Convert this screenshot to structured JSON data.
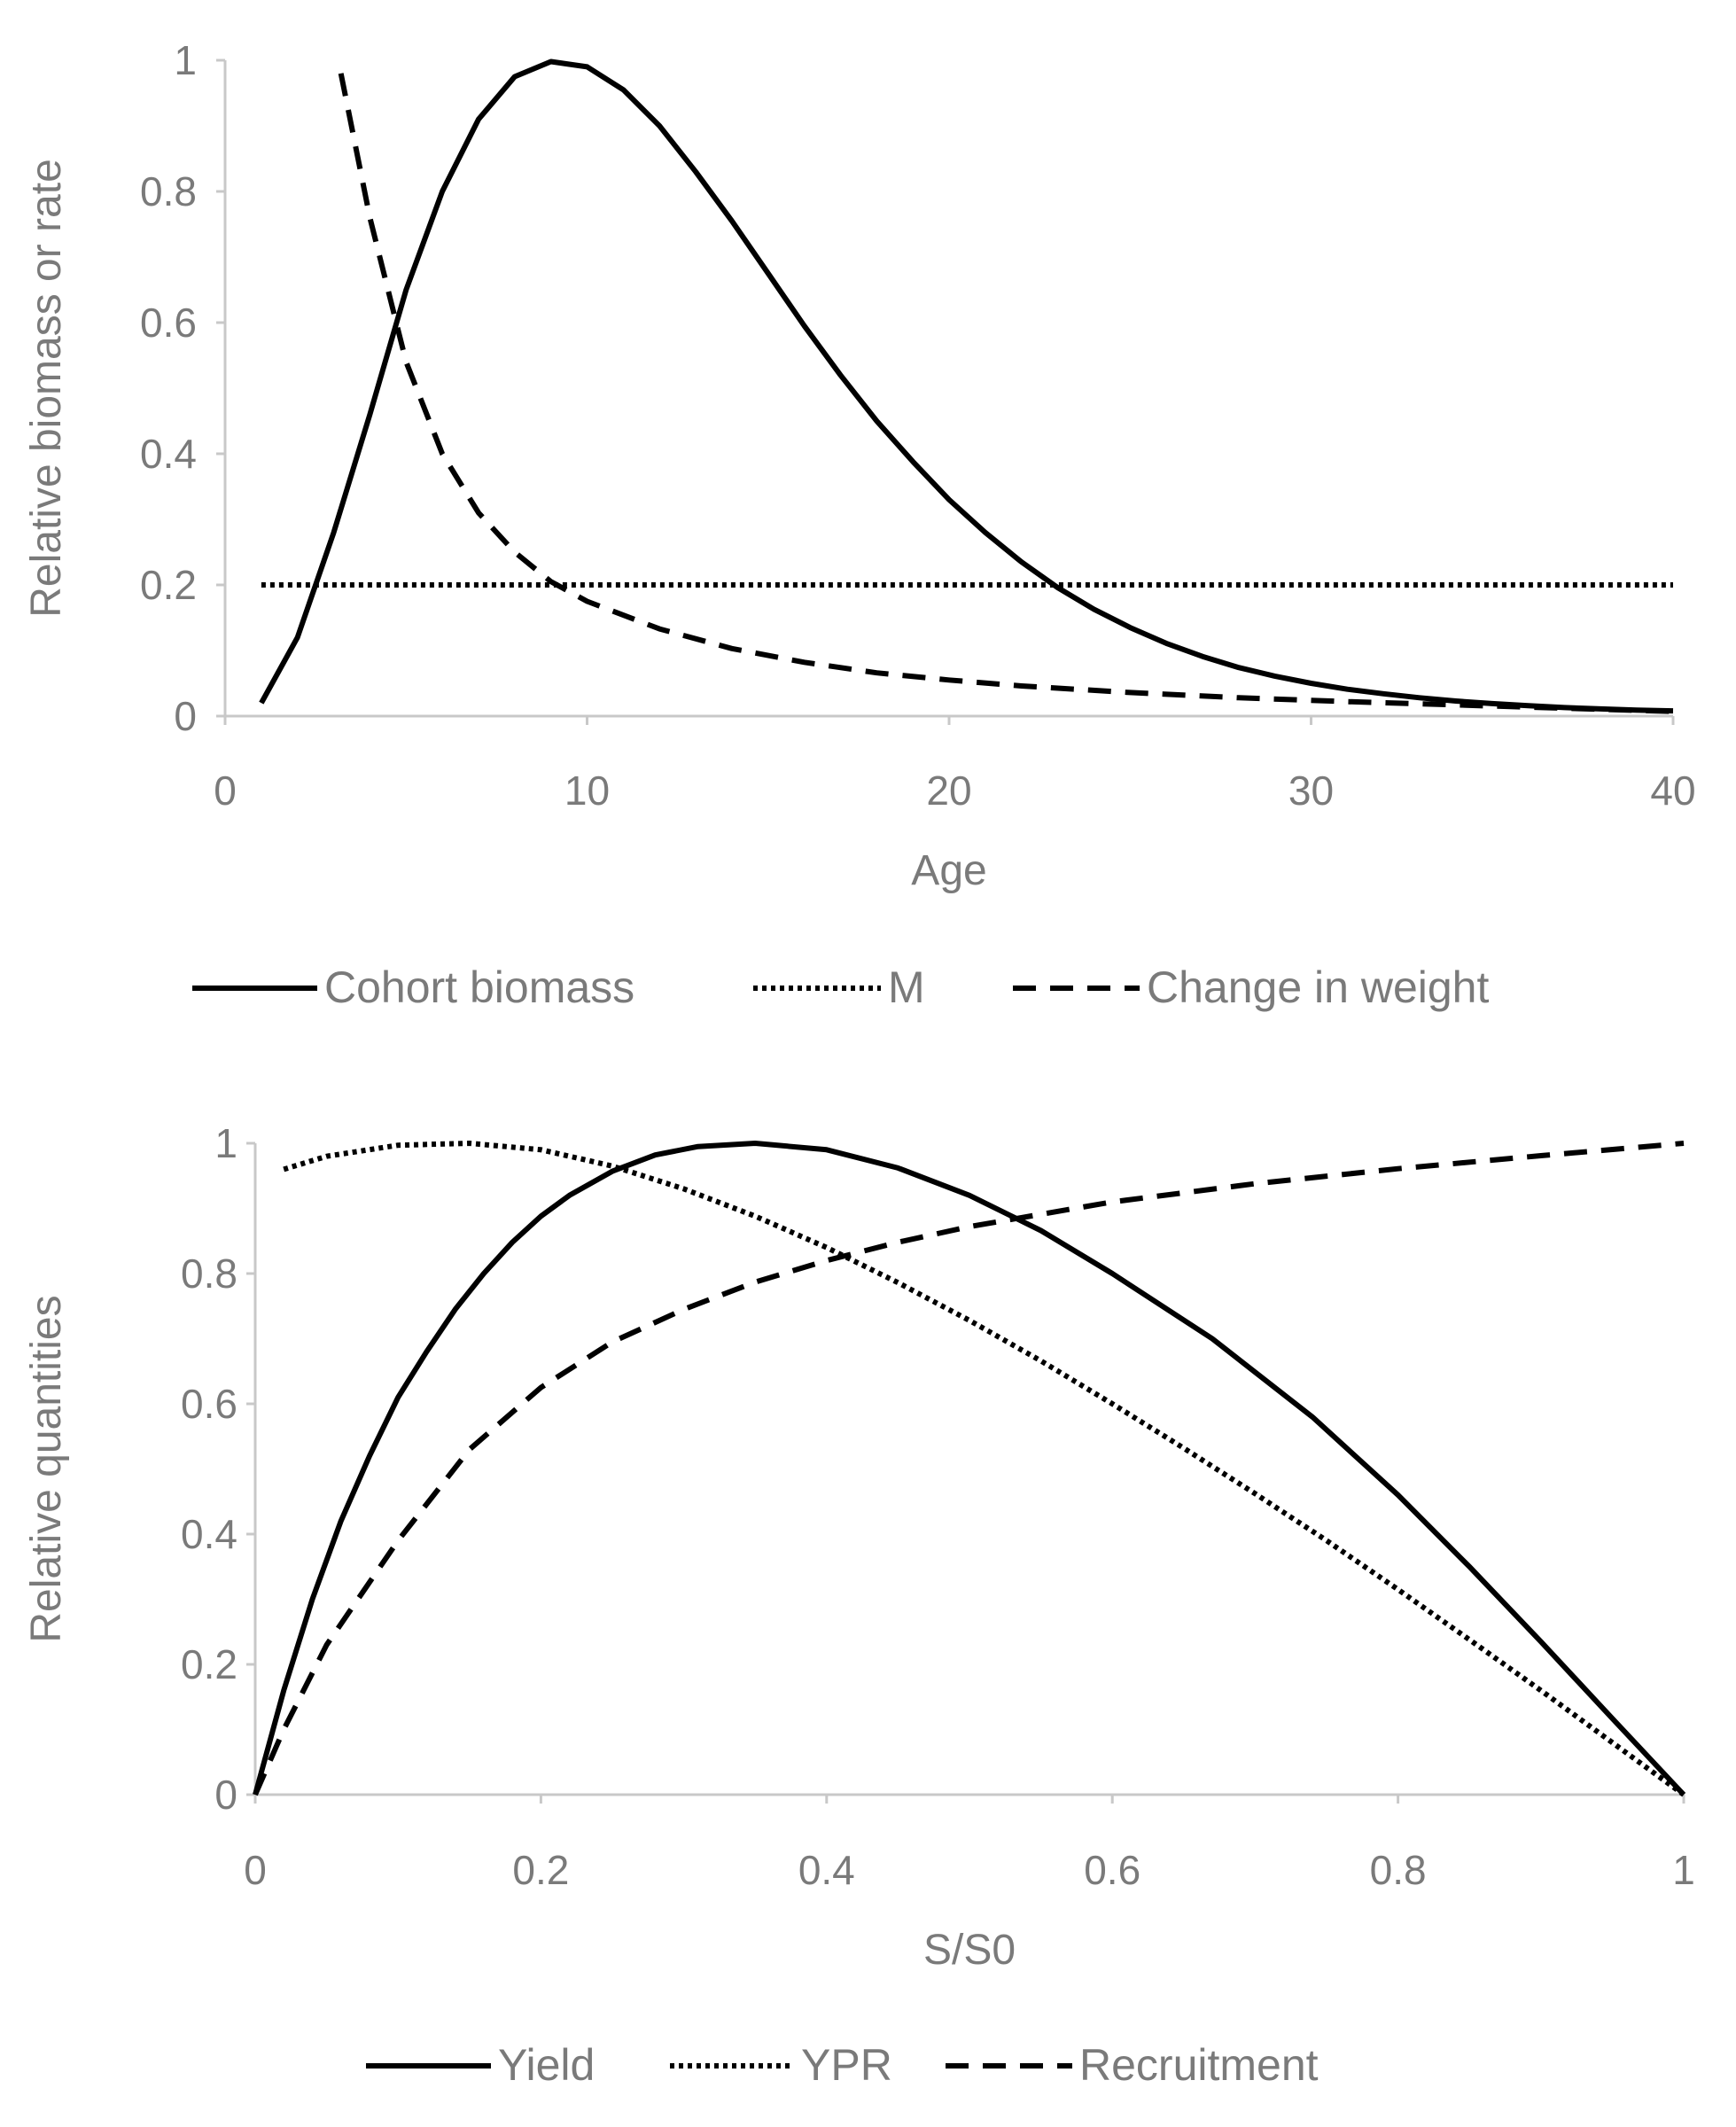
{
  "chart_data": [
    {
      "type": "line",
      "xlabel": "Age",
      "ylabel": "Relative biomass or rate",
      "xlim": [
        0,
        40
      ],
      "ylim": [
        0,
        1
      ],
      "xticks": [
        "0",
        "10",
        "20",
        "30",
        "40"
      ],
      "yticks": [
        "0",
        "0.2",
        "0.4",
        "0.6",
        "0.8",
        "1"
      ],
      "grid": false,
      "legend": "bottom",
      "series": [
        {
          "name": "Cohort biomass",
          "style": "solid",
          "x": [
            1,
            2,
            3,
            4,
            5,
            6,
            7,
            8,
            9,
            10,
            11,
            12,
            13,
            14,
            15,
            16,
            17,
            18,
            19,
            20,
            21,
            22,
            23,
            24,
            25,
            26,
            27,
            28,
            29,
            30,
            31,
            32,
            33,
            34,
            35,
            36,
            37,
            38,
            39,
            40
          ],
          "y": [
            0.02,
            0.12,
            0.28,
            0.46,
            0.65,
            0.8,
            0.91,
            0.975,
            0.998,
            0.99,
            0.955,
            0.9,
            0.83,
            0.755,
            0.675,
            0.595,
            0.52,
            0.45,
            0.388,
            0.33,
            0.28,
            0.235,
            0.196,
            0.163,
            0.135,
            0.111,
            0.091,
            0.074,
            0.061,
            0.05,
            0.041,
            0.034,
            0.028,
            0.023,
            0.019,
            0.016,
            0.013,
            0.011,
            0.009,
            0.008
          ]
        },
        {
          "name": "M",
          "style": "dotted",
          "x": [
            1,
            40
          ],
          "y": [
            0.2,
            0.2
          ]
        },
        {
          "name": "Change in weight",
          "style": "dashed",
          "x": [
            3.2,
            4,
            5,
            6,
            7,
            8,
            9,
            10,
            12,
            14,
            16,
            18,
            20,
            22,
            25,
            28,
            31,
            34,
            37,
            40
          ],
          "y": [
            0.98,
            0.76,
            0.54,
            0.4,
            0.31,
            0.25,
            0.205,
            0.175,
            0.133,
            0.103,
            0.082,
            0.066,
            0.055,
            0.046,
            0.036,
            0.028,
            0.022,
            0.017,
            0.012,
            0.007
          ]
        }
      ]
    },
    {
      "type": "line",
      "xlabel": "S/S0",
      "ylabel": "Relative quantities",
      "xlim": [
        0,
        1
      ],
      "ylim": [
        0,
        1
      ],
      "xticks": [
        "0",
        "0.2",
        "0.4",
        "0.6",
        "0.8",
        "1"
      ],
      "yticks": [
        "0",
        "0.2",
        "0.4",
        "0.6",
        "0.8",
        "1"
      ],
      "grid": false,
      "legend": "bottom",
      "series": [
        {
          "name": "Yield",
          "style": "solid",
          "x": [
            0,
            0.02,
            0.04,
            0.06,
            0.08,
            0.1,
            0.12,
            0.14,
            0.16,
            0.18,
            0.2,
            0.22,
            0.25,
            0.28,
            0.31,
            0.35,
            0.4,
            0.45,
            0.5,
            0.55,
            0.6,
            0.67,
            0.74,
            0.8,
            0.85,
            0.9,
            0.95,
            1.0
          ],
          "y": [
            0,
            0.16,
            0.3,
            0.42,
            0.52,
            0.61,
            0.68,
            0.745,
            0.8,
            0.848,
            0.888,
            0.92,
            0.957,
            0.982,
            0.995,
            1.0,
            0.99,
            0.962,
            0.92,
            0.866,
            0.8,
            0.7,
            0.58,
            0.46,
            0.35,
            0.235,
            0.117,
            0.0
          ]
        },
        {
          "name": "YPR",
          "style": "dotted",
          "x": [
            0.02,
            0.05,
            0.1,
            0.15,
            0.2,
            0.25,
            0.3,
            0.35,
            0.4,
            0.45,
            0.5,
            0.55,
            0.6,
            0.65,
            0.7,
            0.75,
            0.8,
            0.85,
            0.9,
            0.95,
            1.0
          ],
          "y": [
            0.96,
            0.98,
            0.997,
            1.0,
            0.99,
            0.965,
            0.93,
            0.888,
            0.84,
            0.786,
            0.728,
            0.666,
            0.6,
            0.532,
            0.462,
            0.39,
            0.315,
            0.238,
            0.16,
            0.08,
            0.0
          ]
        },
        {
          "name": "Recruitment",
          "style": "dashed",
          "x": [
            0,
            0.02,
            0.05,
            0.1,
            0.15,
            0.2,
            0.25,
            0.3,
            0.35,
            0.4,
            0.45,
            0.5,
            0.6,
            0.7,
            0.8,
            0.9,
            1.0
          ],
          "y": [
            0,
            0.1,
            0.23,
            0.39,
            0.53,
            0.625,
            0.695,
            0.745,
            0.787,
            0.82,
            0.848,
            0.872,
            0.91,
            0.938,
            0.961,
            0.981,
            1.0
          ]
        }
      ]
    }
  ]
}
